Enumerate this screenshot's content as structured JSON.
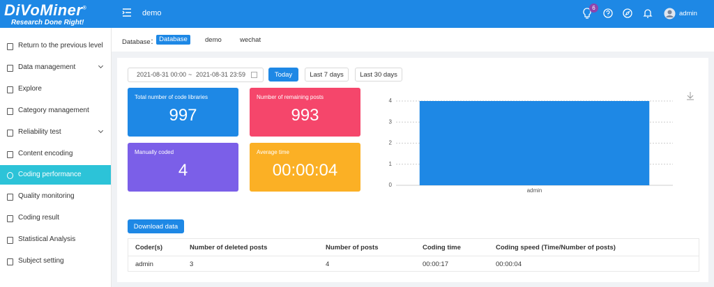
{
  "header": {
    "logo": "DiVoMiner",
    "logo_mark": "®",
    "tagline": "Research Done Right!",
    "project": "demo",
    "badge": "6",
    "user": "admin"
  },
  "sidebar": {
    "items": [
      "Return to the previous level",
      "Data management",
      "Explore",
      "Category management",
      "Reliability test",
      "Content encoding",
      "Coding performance",
      "Quality monitoring",
      "Coding result",
      "Statistical Analysis",
      "Subject setting"
    ]
  },
  "database_bar": {
    "label": "Database：",
    "tabs": [
      "Database",
      "demo",
      "wechat"
    ]
  },
  "filters": {
    "start": "2021-08-31 00:00",
    "separator": "~",
    "end": "2021-08-31 23:59",
    "buttons": [
      "Today",
      "Last 7 days",
      "Last 30 days"
    ]
  },
  "cards": [
    {
      "title": "Total number of code libraries",
      "value": 997
    },
    {
      "title": "Number of remaining posts",
      "value": 993
    },
    {
      "title": "Manually coded",
      "value": 4
    },
    {
      "title": "Average time",
      "value": "00:00:04"
    }
  ],
  "chart_data": {
    "type": "bar",
    "categories": [
      "admin"
    ],
    "values": [
      4
    ],
    "color": "#1e88e5",
    "ylim": [
      0,
      4
    ],
    "yticks": [
      0,
      1,
      2,
      3,
      4
    ],
    "grid": true
  },
  "download": "Download data",
  "table": {
    "columns": [
      "Coder(s)",
      "Number of deleted posts",
      "Number of posts",
      "Coding time",
      "Coding speed (Time/Number of posts)"
    ],
    "rows": [
      [
        "admin",
        "3",
        "4",
        "00:00:17",
        "00:00:04"
      ]
    ]
  }
}
